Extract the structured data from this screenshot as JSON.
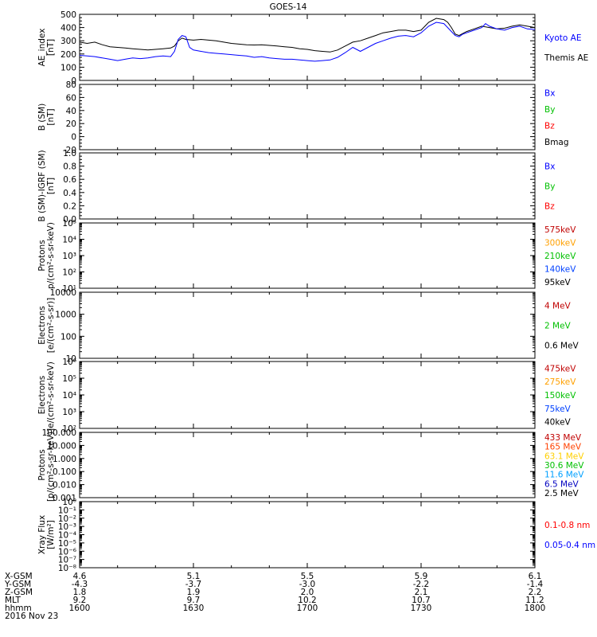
{
  "title": "GOES-14",
  "chart_data": [
    {
      "id": "ae",
      "type": "line",
      "ylabel": [
        "AE_index",
        "[nT]"
      ],
      "ylim": [
        0,
        500
      ],
      "yticks": [
        "0",
        "100",
        "200",
        "300",
        "400",
        "500"
      ],
      "scale": "linear",
      "legend": [
        {
          "name": "Kyoto AE",
          "color": "#0000ff"
        },
        {
          "name": "Themis AE",
          "color": "#000000"
        }
      ],
      "series": [
        {
          "name": "Themis AE",
          "color": "#000000",
          "points": [
            [
              0,
              290
            ],
            [
              2,
              280
            ],
            [
              4,
              290
            ],
            [
              6,
              270
            ],
            [
              8,
              255
            ],
            [
              10,
              250
            ],
            [
              12,
              245
            ],
            [
              14,
              240
            ],
            [
              16,
              235
            ],
            [
              18,
              230
            ],
            [
              20,
              235
            ],
            [
              22,
              240
            ],
            [
              24,
              245
            ],
            [
              25,
              260
            ],
            [
              26,
              300
            ],
            [
              27,
              320
            ],
            [
              28,
              310
            ],
            [
              30,
              305
            ],
            [
              32,
              310
            ],
            [
              34,
              305
            ],
            [
              36,
              300
            ],
            [
              38,
              290
            ],
            [
              40,
              280
            ],
            [
              42,
              275
            ],
            [
              44,
              270
            ],
            [
              46,
              268
            ],
            [
              48,
              270
            ],
            [
              50,
              265
            ],
            [
              52,
              260
            ],
            [
              54,
              255
            ],
            [
              56,
              250
            ],
            [
              58,
              240
            ],
            [
              60,
              235
            ],
            [
              62,
              225
            ],
            [
              64,
              220
            ],
            [
              66,
              215
            ],
            [
              68,
              230
            ],
            [
              70,
              260
            ],
            [
              72,
              290
            ],
            [
              74,
              300
            ],
            [
              76,
              320
            ],
            [
              78,
              340
            ],
            [
              80,
              360
            ],
            [
              82,
              370
            ],
            [
              84,
              380
            ],
            [
              86,
              380
            ],
            [
              88,
              370
            ],
            [
              90,
              380
            ],
            [
              92,
              440
            ],
            [
              94,
              470
            ],
            [
              96,
              460
            ],
            [
              97,
              440
            ],
            [
              98,
              400
            ],
            [
              99,
              350
            ],
            [
              100,
              340
            ],
            [
              101,
              355
            ],
            [
              102,
              370
            ],
            [
              104,
              390
            ],
            [
              106,
              410
            ],
            [
              108,
              400
            ],
            [
              110,
              390
            ],
            [
              112,
              395
            ],
            [
              114,
              410
            ],
            [
              116,
              420
            ],
            [
              118,
              410
            ],
            [
              120,
              400
            ]
          ]
        },
        {
          "name": "Kyoto AE",
          "color": "#0000ff",
          "points": [
            [
              0,
              190
            ],
            [
              2,
              185
            ],
            [
              4,
              180
            ],
            [
              6,
              170
            ],
            [
              8,
              160
            ],
            [
              10,
              150
            ],
            [
              12,
              160
            ],
            [
              14,
              170
            ],
            [
              16,
              165
            ],
            [
              18,
              170
            ],
            [
              20,
              180
            ],
            [
              22,
              185
            ],
            [
              24,
              180
            ],
            [
              25,
              220
            ],
            [
              26,
              310
            ],
            [
              27,
              340
            ],
            [
              28,
              330
            ],
            [
              29,
              250
            ],
            [
              30,
              230
            ],
            [
              32,
              220
            ],
            [
              34,
              210
            ],
            [
              36,
              205
            ],
            [
              38,
              200
            ],
            [
              40,
              195
            ],
            [
              42,
              190
            ],
            [
              44,
              185
            ],
            [
              46,
              175
            ],
            [
              48,
              180
            ],
            [
              50,
              170
            ],
            [
              52,
              165
            ],
            [
              54,
              160
            ],
            [
              56,
              160
            ],
            [
              58,
              155
            ],
            [
              60,
              150
            ],
            [
              62,
              145
            ],
            [
              64,
              150
            ],
            [
              66,
              155
            ],
            [
              68,
              175
            ],
            [
              70,
              210
            ],
            [
              72,
              250
            ],
            [
              74,
              220
            ],
            [
              76,
              250
            ],
            [
              78,
              280
            ],
            [
              80,
              300
            ],
            [
              82,
              320
            ],
            [
              84,
              335
            ],
            [
              86,
              340
            ],
            [
              88,
              330
            ],
            [
              90,
              360
            ],
            [
              92,
              410
            ],
            [
              94,
              440
            ],
            [
              96,
              430
            ],
            [
              97,
              400
            ],
            [
              98,
              370
            ],
            [
              99,
              340
            ],
            [
              100,
              330
            ],
            [
              101,
              350
            ],
            [
              102,
              360
            ],
            [
              104,
              380
            ],
            [
              106,
              400
            ],
            [
              107,
              430
            ],
            [
              108,
              410
            ],
            [
              110,
              390
            ],
            [
              112,
              380
            ],
            [
              114,
              400
            ],
            [
              116,
              410
            ],
            [
              118,
              390
            ],
            [
              120,
              385
            ]
          ]
        }
      ]
    },
    {
      "id": "bsm",
      "type": "line",
      "ylabel": [
        "B (SM)",
        "[nT]"
      ],
      "ylim": [
        -20,
        80
      ],
      "yticks": [
        "-20",
        "0",
        "20",
        "40",
        "60",
        "80"
      ],
      "scale": "linear",
      "legend": [
        {
          "name": "Bx",
          "color": "#0000ff"
        },
        {
          "name": "By",
          "color": "#00c000"
        },
        {
          "name": "Bz",
          "color": "#ff0000"
        },
        {
          "name": "Bmag",
          "color": "#000000"
        }
      ],
      "series": []
    },
    {
      "id": "bigrf",
      "type": "line",
      "ylabel": [
        "B (SM)-IGRF (SM)",
        "[nT]"
      ],
      "ylim": [
        0,
        1
      ],
      "yticks": [
        "0.0",
        "0.2",
        "0.4",
        "0.6",
        "0.8",
        "1.0"
      ],
      "scale": "linear",
      "legend": [
        {
          "name": "Bx",
          "color": "#0000ff"
        },
        {
          "name": "By",
          "color": "#00c000"
        },
        {
          "name": "Bz",
          "color": "#ff0000"
        }
      ],
      "series": []
    },
    {
      "id": "protons1",
      "type": "line",
      "ylabel": [
        "Protons",
        "p/(cm²-s-sr-keV)"
      ],
      "scale": "log",
      "logmin": 1,
      "logmax": 5,
      "yticks": [
        "10¹",
        "10²",
        "10³",
        "10⁴",
        "10⁵"
      ],
      "legend": [
        {
          "name": "575keV",
          "color": "#c00000"
        },
        {
          "name": "300keV",
          "color": "#ffa000"
        },
        {
          "name": "210keV",
          "color": "#00c000"
        },
        {
          "name": "140keV",
          "color": "#0040ff"
        },
        {
          "name": "95keV",
          "color": "#000000"
        }
      ],
      "series": []
    },
    {
      "id": "electrons1",
      "type": "line",
      "ylabel": [
        "Electrons",
        "[e/(cm²-s-sr)]"
      ],
      "scale": "log",
      "logmin": 1,
      "logmax": 4,
      "yticks": [
        "10",
        "100",
        "1000",
        "10000"
      ],
      "legend": [
        {
          "name": "4 MeV",
          "color": "#c00000"
        },
        {
          "name": "2 MeV",
          "color": "#00c000"
        },
        {
          "name": "0.6 MeV",
          "color": "#000000"
        }
      ],
      "series": []
    },
    {
      "id": "electrons2",
      "type": "line",
      "ylabel": [
        "Electrons",
        "e/(cm²-s-sr-keV)"
      ],
      "scale": "log",
      "logmin": 2,
      "logmax": 6,
      "yticks": [
        "10²",
        "10³",
        "10⁴",
        "10⁵",
        "10⁶"
      ],
      "legend": [
        {
          "name": "475keV",
          "color": "#c00000"
        },
        {
          "name": "275keV",
          "color": "#ffa000"
        },
        {
          "name": "150keV",
          "color": "#00c000"
        },
        {
          "name": "75keV",
          "color": "#0040ff"
        },
        {
          "name": "40keV",
          "color": "#000000"
        }
      ],
      "series": []
    },
    {
      "id": "protons2",
      "type": "line",
      "ylabel": [
        "Protons",
        "[p/(cm²-s-sr-keV)]"
      ],
      "scale": "log",
      "logmin": -3,
      "logmax": 2,
      "yticks": [
        "0.001",
        "0.010",
        "0.100",
        "1.000",
        "10.000",
        "100.000"
      ],
      "legend": [
        {
          "name": "433 MeV",
          "color": "#c00000"
        },
        {
          "name": "165 MeV",
          "color": "#ff4000"
        },
        {
          "name": "63.1 MeV",
          "color": "#ffd000"
        },
        {
          "name": "30.6 MeV",
          "color": "#00c000"
        },
        {
          "name": "11.6 MeV",
          "color": "#00a0ff"
        },
        {
          "name": "6.5 MeV",
          "color": "#0000c0"
        },
        {
          "name": "2.5 MeV",
          "color": "#000000"
        }
      ],
      "series": []
    },
    {
      "id": "xray",
      "type": "line",
      "ylabel": [
        "Xray Flux",
        "[W/m²]"
      ],
      "scale": "log",
      "logmin": -8,
      "logmax": 0,
      "yticks": [
        "10⁻⁸",
        "10⁻⁷",
        "10⁻⁶",
        "10⁻⁵",
        "10⁻⁴",
        "10⁻³",
        "10⁻²",
        "10⁻¹",
        "10⁰"
      ],
      "legend": [
        {
          "name": "0.1-0.8 nm",
          "color": "#ff0000"
        },
        {
          "name": "0.05-0.4 nm",
          "color": "#0000ff"
        }
      ],
      "series": []
    }
  ],
  "xaxis": {
    "row_labels": [
      "X-GSM",
      "Y-GSM",
      "Z-GSM",
      "MLT",
      "hhmm"
    ],
    "date": "2016 Nov 23",
    "columns": [
      [
        "4.6",
        "-4.3",
        "1.8",
        "9.2",
        "1600"
      ],
      [
        "5.1",
        "-3.7",
        "1.9",
        "9.7",
        "1630"
      ],
      [
        "5.5",
        "-3.0",
        "2.0",
        "10.2",
        "1700"
      ],
      [
        "5.9",
        "-2.2",
        "2.1",
        "10.7",
        "1730"
      ],
      [
        "6.1",
        "-1.4",
        "2.2",
        "11.2",
        "1800"
      ]
    ]
  }
}
